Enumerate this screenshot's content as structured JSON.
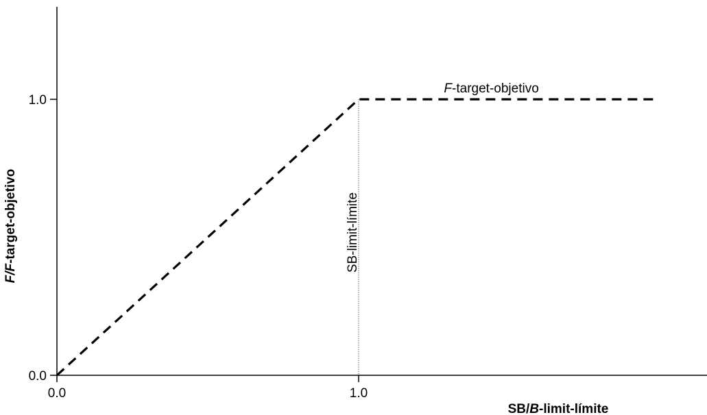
{
  "chart_data": {
    "type": "line",
    "xlabel": {
      "prefix": "SB/",
      "italic": "B",
      "suffix": "-limit-límite"
    },
    "ylabel": {
      "italic": "F/F",
      "suffix": "-target-objetivo"
    },
    "x_tick_labels": [
      "0.0",
      "1.0"
    ],
    "y_tick_labels": [
      "0.0",
      "1.0"
    ],
    "x_ticks": [
      0.0,
      1.0
    ],
    "y_ticks": [
      0.0,
      1.0
    ],
    "xlim": [
      0.0,
      2.3
    ],
    "ylim": [
      0.0,
      1.33
    ],
    "grid": false,
    "series": [
      {
        "style": "dashed",
        "color": "#000000",
        "x": [
          0.0,
          1.0,
          1.0,
          1.98
        ],
        "y": [
          0.0,
          1.0,
          1.0,
          1.0
        ]
      }
    ],
    "reference_line": {
      "orientation": "vertical",
      "x": 1.0,
      "style": "dotted",
      "label": "SB-limit-límite"
    },
    "annotation": {
      "italic": "F",
      "suffix": "-target-objetivo",
      "x": 1.44,
      "y": 1.0
    }
  }
}
